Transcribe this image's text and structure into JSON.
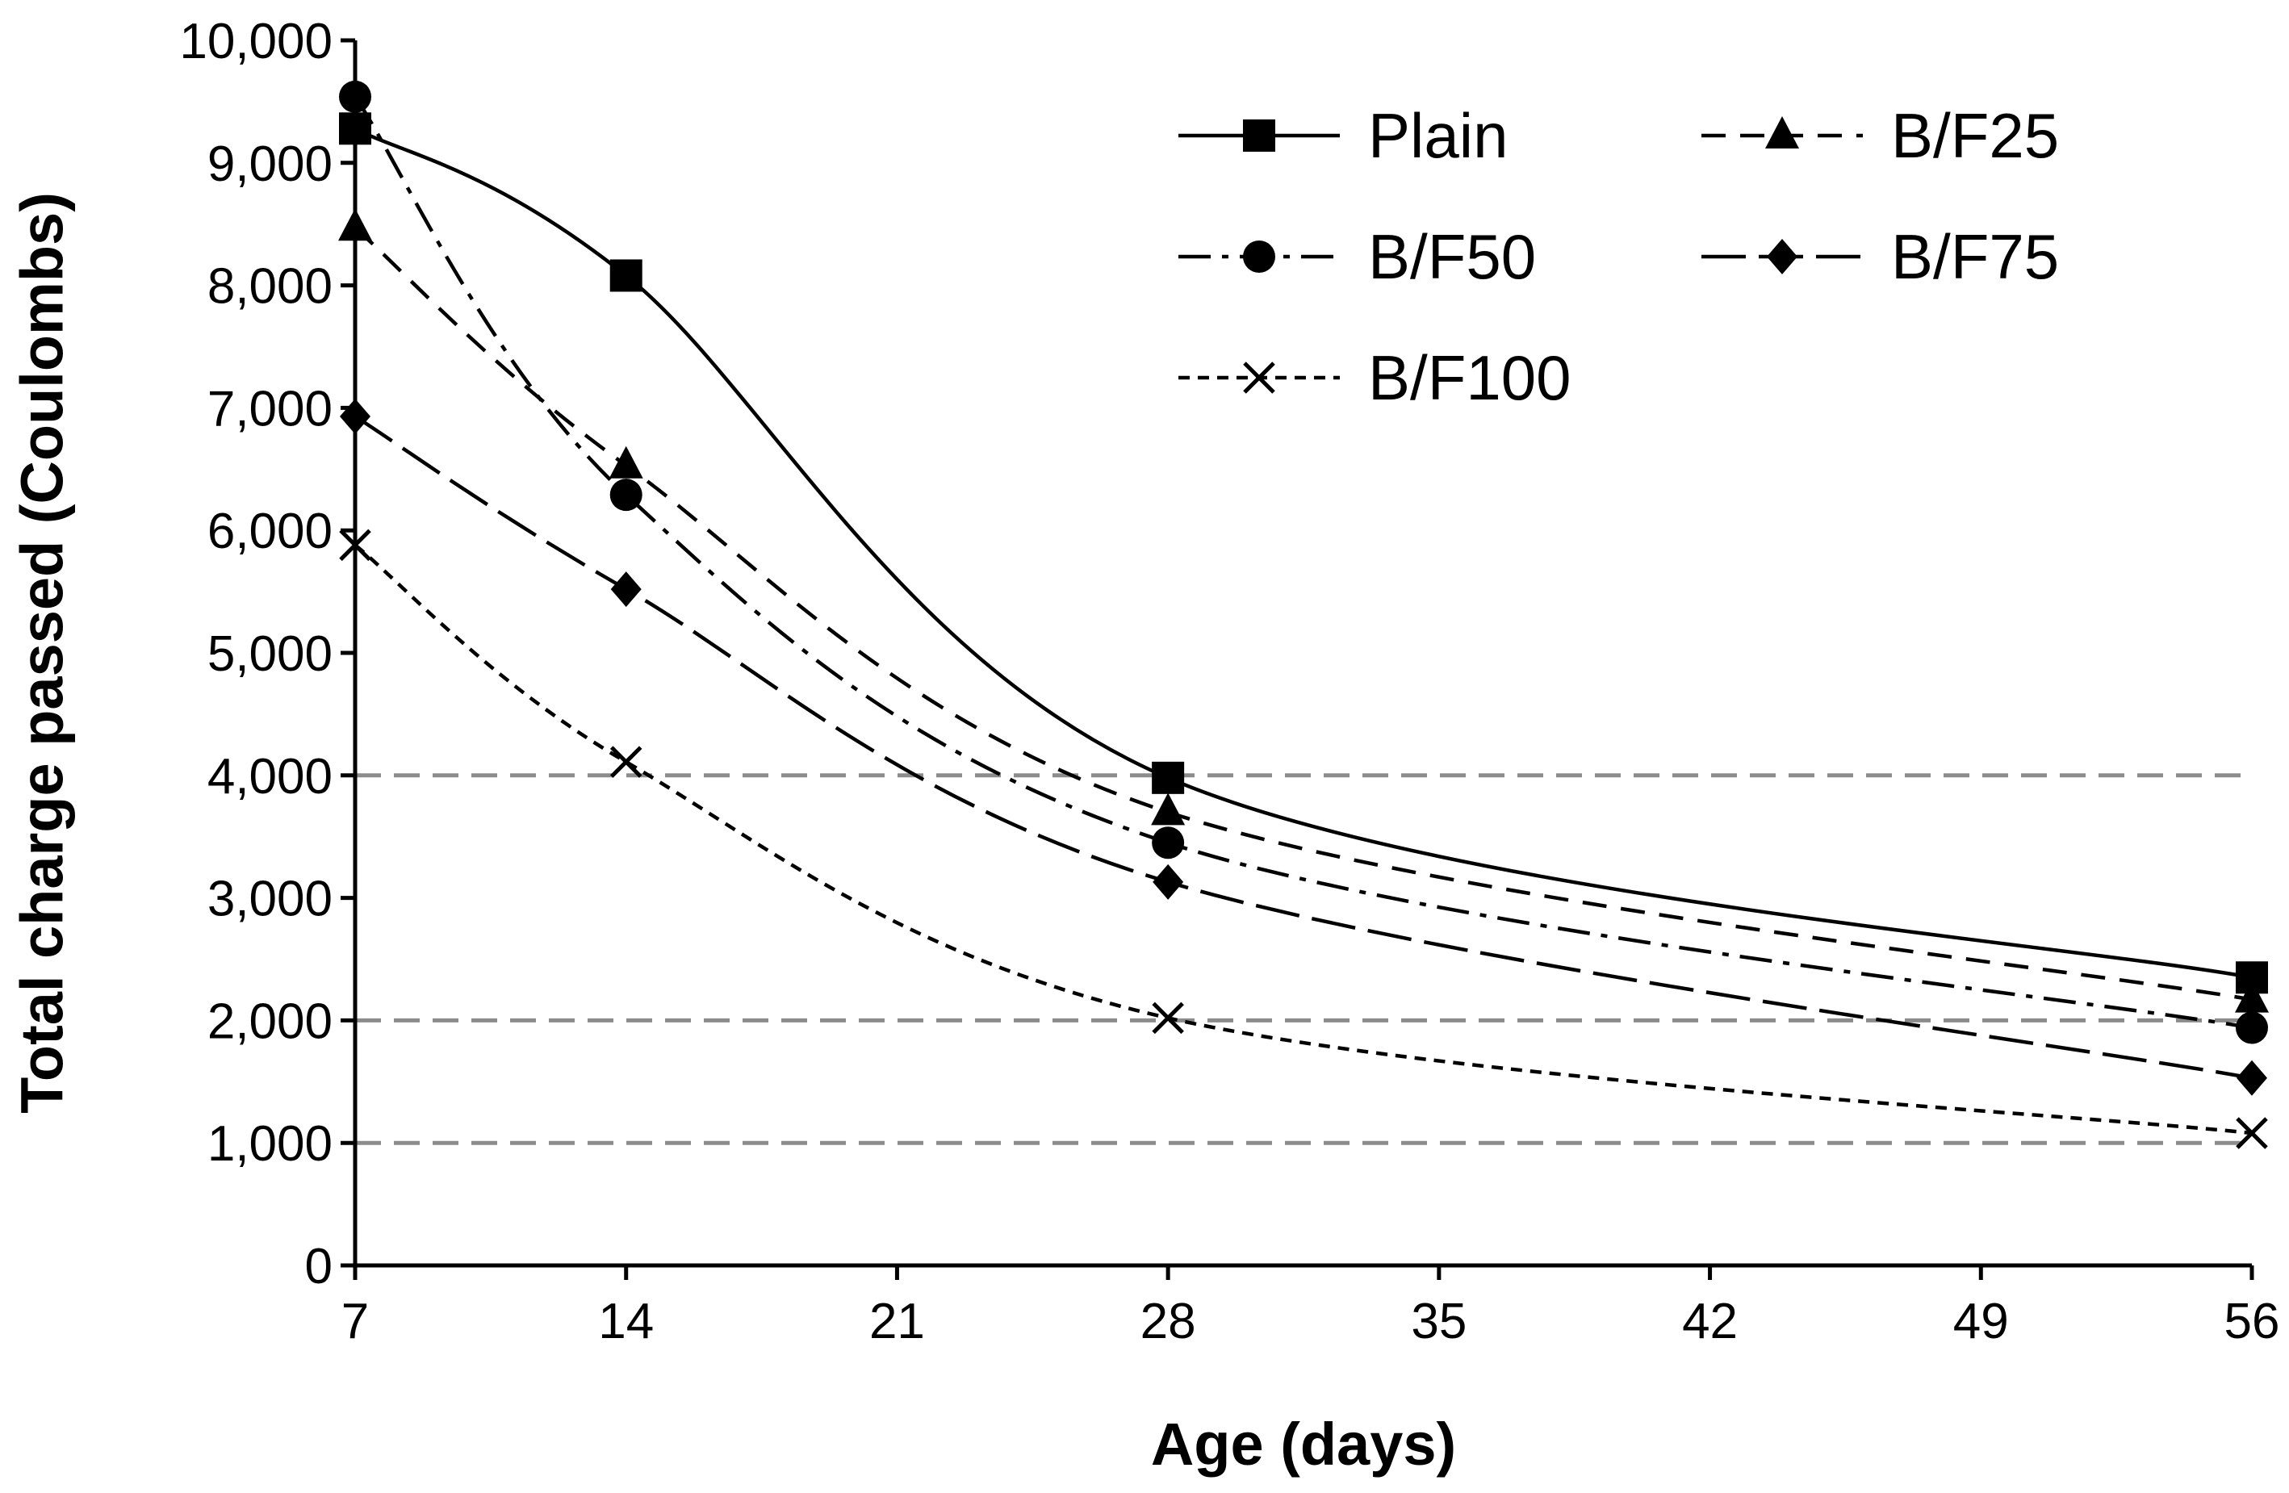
{
  "chart_data": {
    "type": "line",
    "title": "",
    "xlabel": "Age (days)",
    "ylabel": "Total charge passed (Coulombs)",
    "xlim": [
      7,
      56
    ],
    "ylim": [
      0,
      10000
    ],
    "x_ticks": [
      7,
      14,
      21,
      28,
      35,
      42,
      49,
      56
    ],
    "x_tick_labels": [
      "7",
      "14",
      "21",
      "28",
      "35",
      "42",
      "49",
      "56"
    ],
    "y_ticks": [
      0,
      1000,
      2000,
      3000,
      4000,
      5000,
      6000,
      7000,
      8000,
      9000,
      10000
    ],
    "y_tick_labels": [
      "0",
      "1,000",
      "2,000",
      "3,000",
      "4,000",
      "5,000",
      "6,000",
      "7,000",
      "8,000",
      "9,000",
      "10,000"
    ],
    "reference_lines": [
      1000,
      2000,
      4000
    ],
    "x": [
      7,
      14,
      28,
      56
    ],
    "series": [
      {
        "name": "Plain",
        "values": [
          9280,
          8080,
          3980,
          2350
        ],
        "marker": "square",
        "line_style": "solid"
      },
      {
        "name": "B/F25",
        "values": [
          8470,
          6530,
          3700,
          2170
        ],
        "marker": "triangle",
        "line_style": "dash"
      },
      {
        "name": "B/F50",
        "values": [
          9540,
          6290,
          3450,
          1940
        ],
        "marker": "circle",
        "line_style": "dashdot"
      },
      {
        "name": "B/F75",
        "values": [
          6930,
          5520,
          3130,
          1530
        ],
        "marker": "diamond",
        "line_style": "longdash"
      },
      {
        "name": "B/F100",
        "values": [
          5880,
          4110,
          2020,
          1080
        ],
        "marker": "x",
        "line_style": "shortdash"
      }
    ],
    "legend_position": "top-right",
    "colors": {
      "series": "#000000",
      "reference_line": "#8c8c8c",
      "axis": "#000000"
    }
  }
}
